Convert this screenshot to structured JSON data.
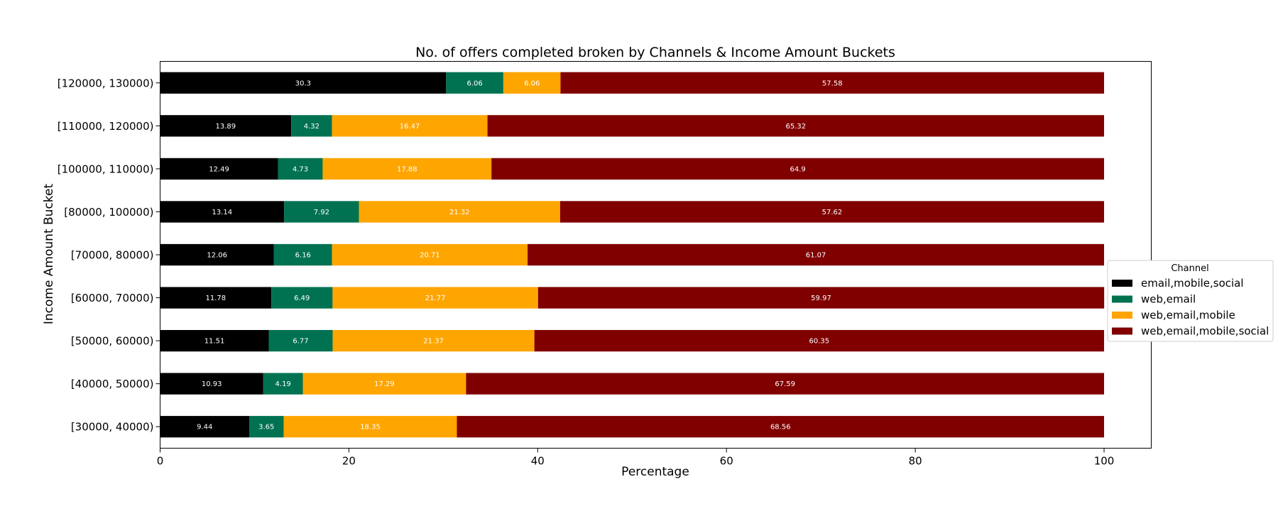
{
  "chart_data": {
    "type": "bar",
    "orientation": "horizontal",
    "stacked": true,
    "title": "No. of offers completed broken by Channels & Income Amount Buckets",
    "xlabel": "Percentage",
    "ylabel": "Income Amount Bucket",
    "xlim": [
      0,
      105
    ],
    "xticks": [
      0,
      20,
      40,
      60,
      80,
      100
    ],
    "categories": [
      "[30000, 40000)",
      "[40000, 50000)",
      "[50000, 60000)",
      "[60000, 70000)",
      "[70000, 80000)",
      "[80000, 100000)",
      "[100000, 110000)",
      "[110000, 120000)",
      "[120000, 130000)"
    ],
    "series": [
      {
        "name": "email,mobile,social",
        "color": "#000000",
        "label_color": "#ffffff",
        "values": [
          9.44,
          10.93,
          11.51,
          11.78,
          12.06,
          13.14,
          12.49,
          13.89,
          30.3
        ]
      },
      {
        "name": "web,email",
        "color": "#007251",
        "label_color": "#ffffff",
        "values": [
          3.65,
          4.19,
          6.77,
          6.49,
          6.16,
          7.92,
          4.73,
          4.32,
          6.06
        ]
      },
      {
        "name": "web,email,mobile",
        "color": "#ffa500",
        "label_color": "#ffffff",
        "values": [
          18.35,
          17.29,
          21.37,
          21.77,
          20.71,
          21.32,
          17.88,
          16.47,
          6.06
        ]
      },
      {
        "name": "web,email,mobile,social",
        "color": "#800000",
        "label_color": "#ffffff",
        "values": [
          68.56,
          67.59,
          60.35,
          59.97,
          61.07,
          57.62,
          64.9,
          65.32,
          57.58
        ]
      }
    ],
    "legend": {
      "title": "Channel",
      "placement": "center-right outside"
    },
    "grid": false
  }
}
